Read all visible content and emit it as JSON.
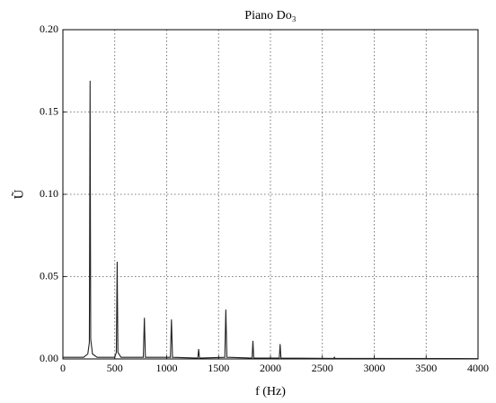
{
  "chart_data": {
    "type": "line",
    "title": "Piano Do₃",
    "x_label": "f (Hz)",
    "y_label": "Ũ",
    "x": [
      0,
      200,
      240,
      255,
      262,
      268,
      285,
      330,
      500,
      515,
      523,
      530,
      560,
      775,
      785,
      795,
      1036,
      1046,
      1056,
      1300,
      1308,
      1316,
      1560,
      1570,
      1580,
      1823,
      1831,
      1839,
      2085,
      2093,
      2101,
      2610,
      2616,
      2622,
      4000
    ],
    "values": [
      0.001,
      0.001,
      0.003,
      0.01,
      0.169,
      0.012,
      0.003,
      0.001,
      0.001,
      0.004,
      0.059,
      0.004,
      0.001,
      0.001,
      0.025,
      0.001,
      0.001,
      0.024,
      0.001,
      0.0005,
      0.006,
      0.0005,
      0.001,
      0.03,
      0.001,
      0.0005,
      0.011,
      0.0005,
      0.0005,
      0.009,
      0.0005,
      0.0003,
      0.001,
      0.0003,
      0.0002
    ],
    "color": "#222222",
    "xlim": [
      0,
      4000
    ],
    "xticks": [
      0,
      500,
      1000,
      1500,
      2000,
      2500,
      3000,
      3500,
      4000
    ],
    "ylim": [
      0,
      0.2
    ],
    "yticks": [
      {
        "value": 0,
        "label": "0.00"
      },
      {
        "value": 0.05,
        "label": "0.05"
      },
      {
        "value": 0.1,
        "label": "0.10"
      },
      {
        "value": 0.15,
        "label": "0.15"
      },
      {
        "value": 0.2,
        "label": "0.20"
      }
    ],
    "grid": true
  }
}
